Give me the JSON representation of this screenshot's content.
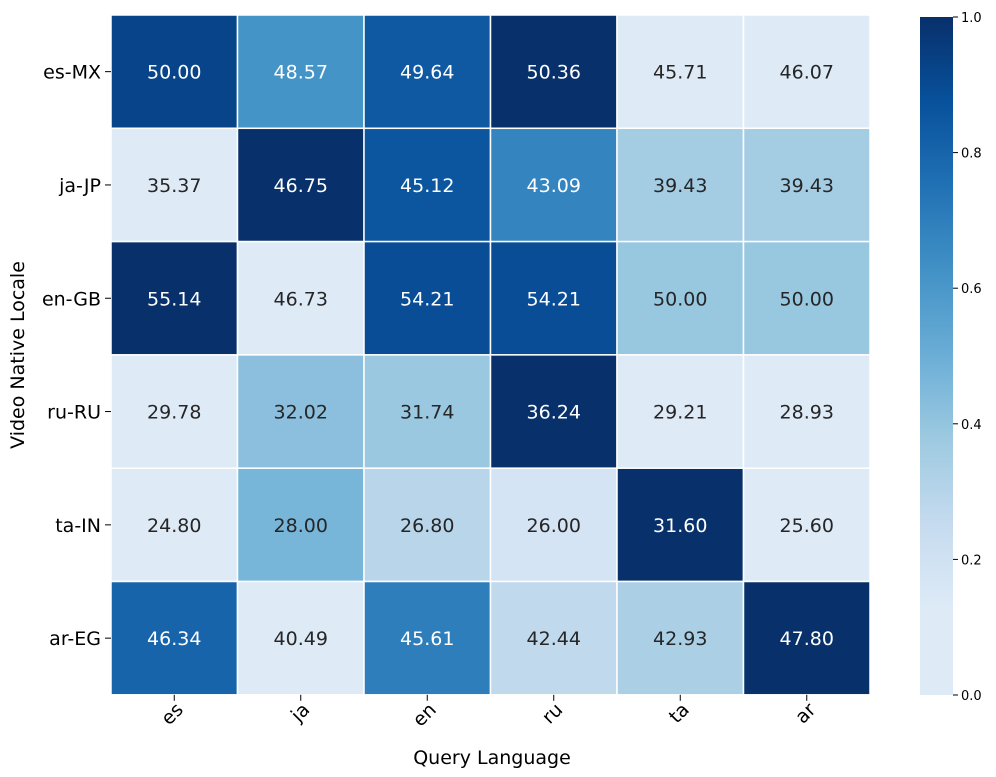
{
  "chart_data": {
    "type": "heatmap",
    "xlabel": "Query Language",
    "ylabel": "Video Native Locale",
    "x_categories": [
      "es",
      "ja",
      "en",
      "ru",
      "ta",
      "ar"
    ],
    "y_categories": [
      "es-MX",
      "ja-JP",
      "en-GB",
      "ru-RU",
      "ta-IN",
      "ar-EG"
    ],
    "values": [
      [
        50.0,
        48.57,
        49.64,
        50.36,
        45.71,
        46.07
      ],
      [
        35.37,
        46.75,
        45.12,
        43.09,
        39.43,
        39.43
      ],
      [
        55.14,
        46.73,
        54.21,
        54.21,
        50.0,
        50.0
      ],
      [
        29.78,
        32.02,
        31.74,
        36.24,
        29.21,
        28.93
      ],
      [
        24.8,
        28.0,
        26.8,
        26.0,
        31.6,
        25.6
      ],
      [
        46.34,
        40.49,
        45.61,
        42.44,
        42.93,
        47.8
      ]
    ],
    "value_labels": [
      [
        "50.00",
        "48.57",
        "49.64",
        "50.36",
        "45.71",
        "46.07"
      ],
      [
        "35.37",
        "46.75",
        "45.12",
        "43.09",
        "39.43",
        "39.43"
      ],
      [
        "55.14",
        "46.73",
        "54.21",
        "54.21",
        "50.00",
        "50.00"
      ],
      [
        "29.78",
        "32.02",
        "31.74",
        "36.24",
        "29.21",
        "28.93"
      ],
      [
        "24.80",
        "28.00",
        "26.80",
        "26.00",
        "31.60",
        "25.60"
      ],
      [
        "46.34",
        "40.49",
        "45.61",
        "42.44",
        "42.93",
        "47.80"
      ]
    ],
    "color_normalization": "per-row min-max",
    "colorbar": {
      "range": [
        0.0,
        1.0
      ],
      "ticks": [
        "0.0",
        "0.2",
        "0.4",
        "0.6",
        "0.8",
        "1.0"
      ],
      "colormap": "Blues",
      "color_min": "#deebf7",
      "color_max": "#08306b"
    },
    "grid": false
  }
}
